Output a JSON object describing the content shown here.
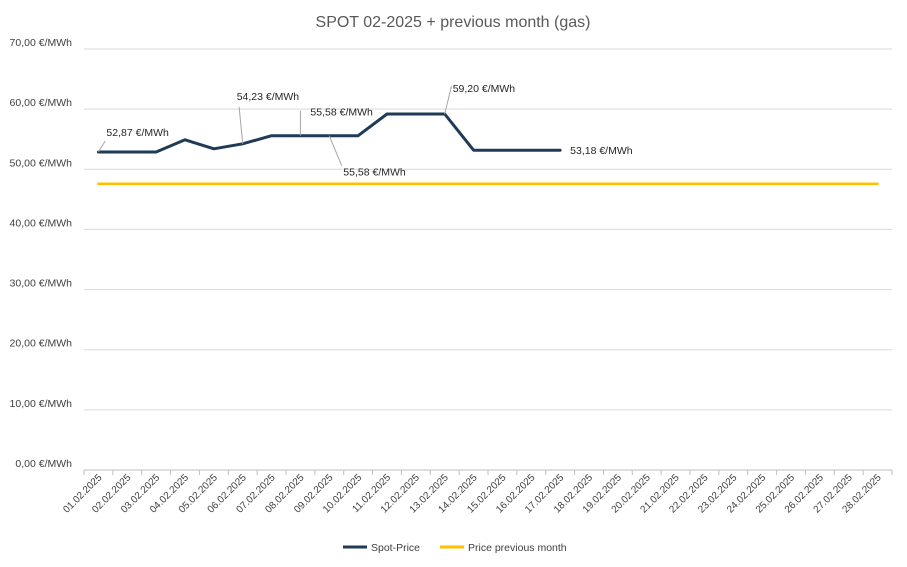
{
  "chart_data": {
    "type": "line",
    "title": "SPOT 02-2025 + previous month (gas)",
    "xlabel": "",
    "ylabel": "",
    "ylim": [
      0,
      70
    ],
    "y_ticks": [
      "0,00 €/MWh",
      "10,00 €/MWh",
      "20,00 €/MWh",
      "30,00 €/MWh",
      "40,00 €/MWh",
      "50,00 €/MWh",
      "60,00 €/MWh",
      "70,00 €/MWh"
    ],
    "y_tick_values": [
      0,
      10,
      20,
      30,
      40,
      50,
      60,
      70
    ],
    "categories": [
      "01.02.2025",
      "02.02.2025",
      "03.02.2025",
      "04.02.2025",
      "05.02.2025",
      "06.02.2025",
      "07.02.2025",
      "08.02.2025",
      "09.02.2025",
      "10.02.2025",
      "11.02.2025",
      "12.02.2025",
      "13.02.2025",
      "14.02.2025",
      "15.02.2025",
      "16.02.2025",
      "17.02.2025",
      "18.02.2025",
      "19.02.2025",
      "20.02.2025",
      "21.02.2025",
      "22.02.2025",
      "23.02.2025",
      "24.02.2025",
      "25.02.2025",
      "26.02.2025",
      "27.02.2025",
      "28.02.2025"
    ],
    "grid": true,
    "legend_position": "bottom",
    "series": [
      {
        "name": "Spot-Price",
        "color": "#1f3b57",
        "values": [
          52.87,
          52.87,
          52.87,
          54.9,
          53.4,
          54.23,
          55.58,
          55.58,
          55.58,
          55.58,
          59.2,
          59.2,
          59.2,
          53.18,
          53.18,
          53.18,
          53.18,
          null,
          null,
          null,
          null,
          null,
          null,
          null,
          null,
          null,
          null,
          null
        ]
      },
      {
        "name": "Price previous month",
        "color": "#ffc000",
        "values": [
          47.6,
          47.6,
          47.6,
          47.6,
          47.6,
          47.6,
          47.6,
          47.6,
          47.6,
          47.6,
          47.6,
          47.6,
          47.6,
          47.6,
          47.6,
          47.6,
          47.6,
          47.6,
          47.6,
          47.6,
          47.6,
          47.6,
          47.6,
          47.6,
          47.6,
          47.6,
          47.6,
          47.6
        ]
      }
    ],
    "annotations": [
      {
        "text": "52,87 €/MWh",
        "index": 0,
        "value": 52.87
      },
      {
        "text": "54,23 €/MWh",
        "index": 5,
        "value": 54.23
      },
      {
        "text": "55,58 €/MWh",
        "index": 7,
        "value": 55.58
      },
      {
        "text": "55,58 €/MWh",
        "index": 8,
        "value": 55.58
      },
      {
        "text": "59,20 €/MWh",
        "index": 12,
        "value": 59.2
      },
      {
        "text": "53,18 €/MWh",
        "index": 16,
        "value": 53.18
      }
    ]
  }
}
